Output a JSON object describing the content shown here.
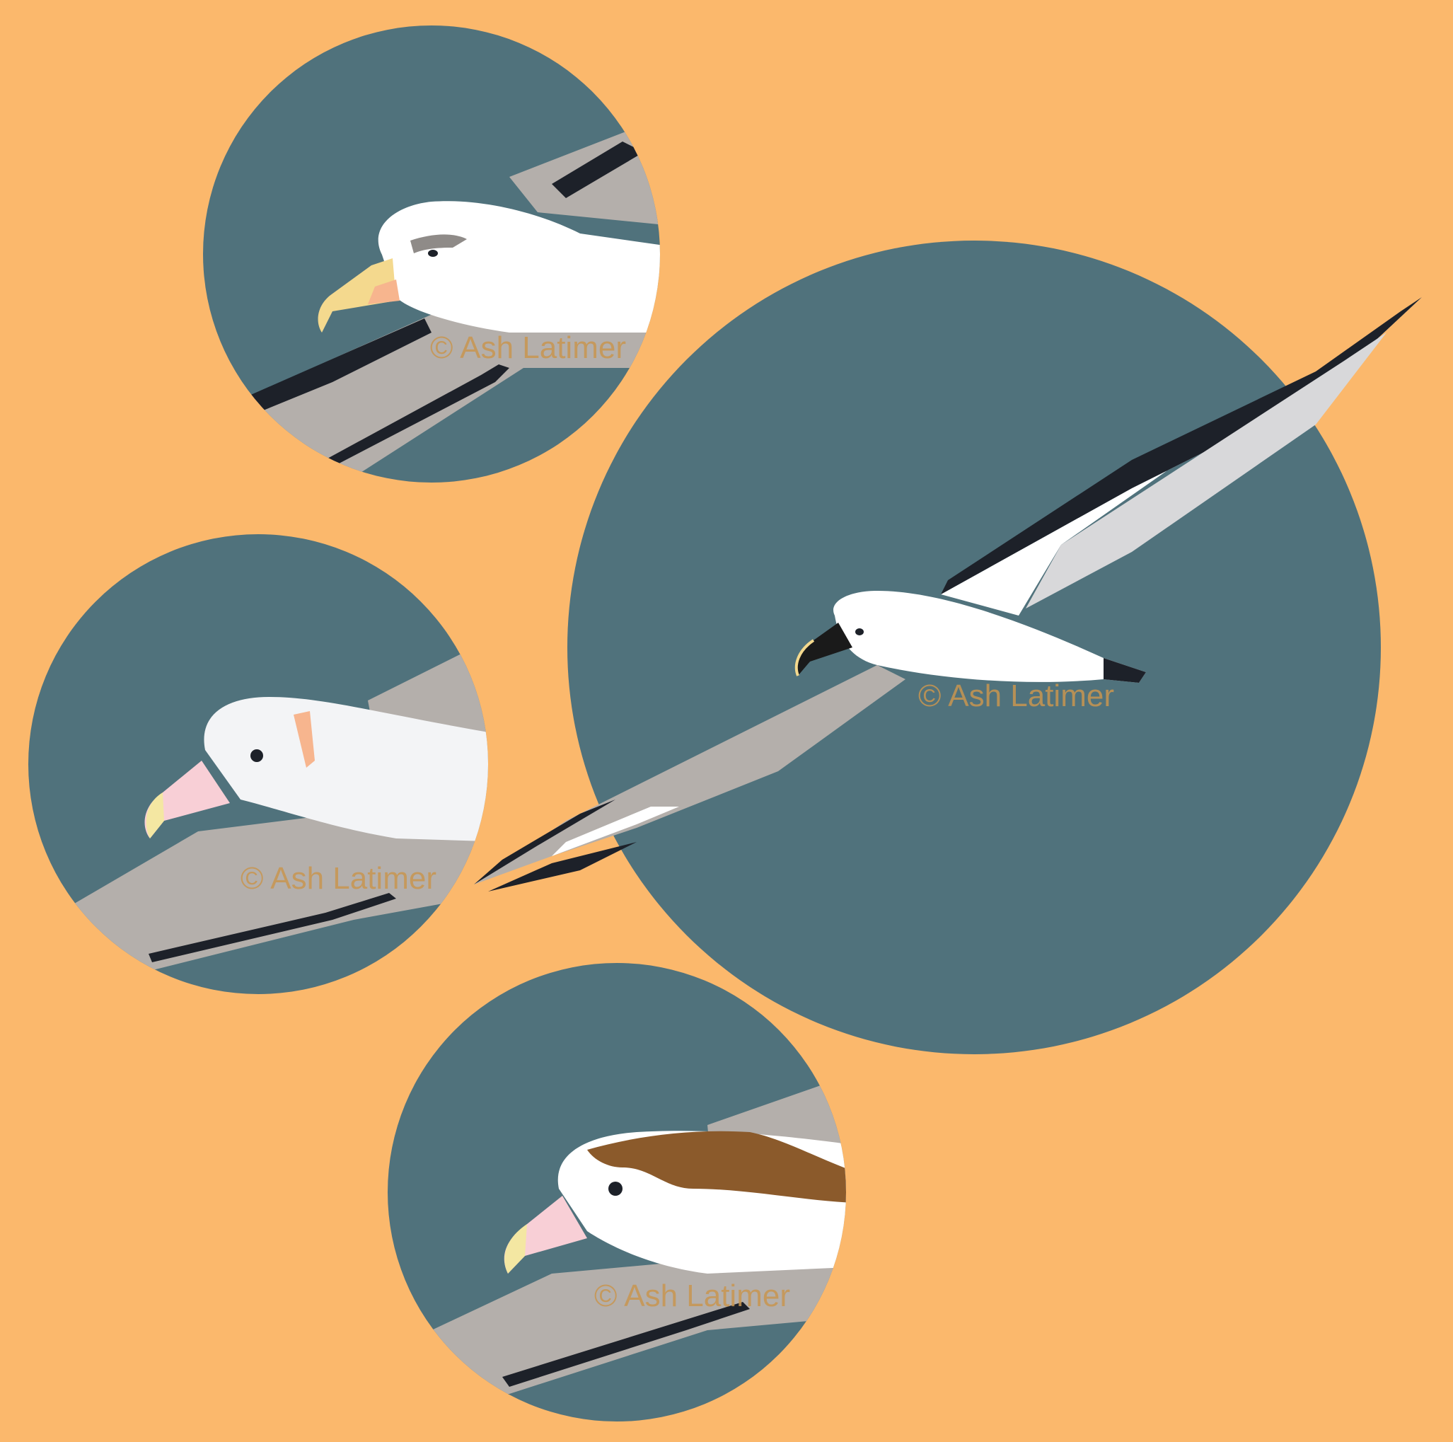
{
  "colors": {
    "background": "#FBB86C",
    "circle": "#50727C",
    "wing_gray": "#B4AFAB",
    "wing_dark": "#1D2129",
    "body_white": "#FFFFFF",
    "plumage_offwhite": "#F3F4F6",
    "bill_yellow": "#F4D98E",
    "bill_pink": "#F8CFD6",
    "bill_black": "#1A1A1A",
    "mottling_brown": "#8B5A2B",
    "watermark": "#C89650"
  },
  "watermarks": {
    "top_left": "© Ash Latimer",
    "middle_left": "© Ash Latimer",
    "bottom": "© Ash Latimer",
    "large": "© Ash Latimer"
  }
}
